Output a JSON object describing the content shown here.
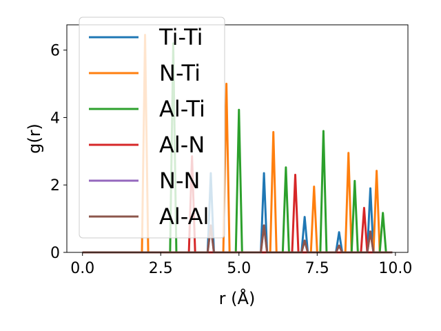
{
  "chart_data": {
    "type": "line",
    "title": "",
    "xlabel": "r (Å)",
    "ylabel": "g(r)",
    "xlim": [
      -0.5,
      10.4
    ],
    "ylim": [
      0,
      6.75
    ],
    "xticks": [
      0.0,
      2.5,
      5.0,
      7.5,
      10.0
    ],
    "xtick_labels": [
      "0.0",
      "2.5",
      "5.0",
      "7.5",
      "10.0"
    ],
    "yticks": [
      0,
      2,
      4,
      6
    ],
    "ytick_labels": [
      "0",
      "2",
      "4",
      "6"
    ],
    "grid": false,
    "legend_position": "upper-left",
    "x_range": [
      0,
      9.9
    ],
    "peak_halfwidth": 0.1,
    "series": [
      {
        "name": "Ti-Ti",
        "color": "#1f77b4",
        "peaks": [
          [
            4.1,
            2.35
          ],
          [
            5.8,
            2.35
          ],
          [
            7.1,
            1.05
          ],
          [
            8.2,
            0.6
          ],
          [
            9.2,
            1.9
          ]
        ]
      },
      {
        "name": "N-Ti",
        "color": "#ff7f0e",
        "peaks": [
          [
            2.0,
            6.45
          ],
          [
            4.6,
            5.0
          ],
          [
            6.1,
            3.57
          ],
          [
            7.4,
            1.95
          ],
          [
            8.5,
            2.95
          ],
          [
            9.4,
            2.42
          ]
        ]
      },
      {
        "name": "Al-Ti",
        "color": "#2ca02c",
        "peaks": [
          [
            2.9,
            6.2
          ],
          [
            5.0,
            4.23
          ],
          [
            6.5,
            2.52
          ],
          [
            7.7,
            3.6
          ],
          [
            8.7,
            2.12
          ],
          [
            9.6,
            1.17
          ]
        ]
      },
      {
        "name": "Al-N",
        "color": "#d62728",
        "peaks": [
          [
            3.5,
            2.85
          ],
          [
            6.8,
            2.3
          ],
          [
            9.0,
            1.32
          ]
        ]
      },
      {
        "name": "N-N",
        "color": "#9467bd",
        "peaks": [
          [
            4.1,
            0.8
          ],
          [
            5.8,
            0.8
          ],
          [
            7.1,
            0.35
          ],
          [
            8.2,
            0.2
          ],
          [
            9.2,
            0.62
          ]
        ]
      },
      {
        "name": "Al-Al",
        "color": "#8c564b",
        "peaks": [
          [
            4.1,
            0.8
          ],
          [
            5.8,
            0.8
          ],
          [
            7.1,
            0.35
          ],
          [
            8.2,
            0.2
          ],
          [
            9.2,
            0.62
          ]
        ]
      }
    ]
  }
}
